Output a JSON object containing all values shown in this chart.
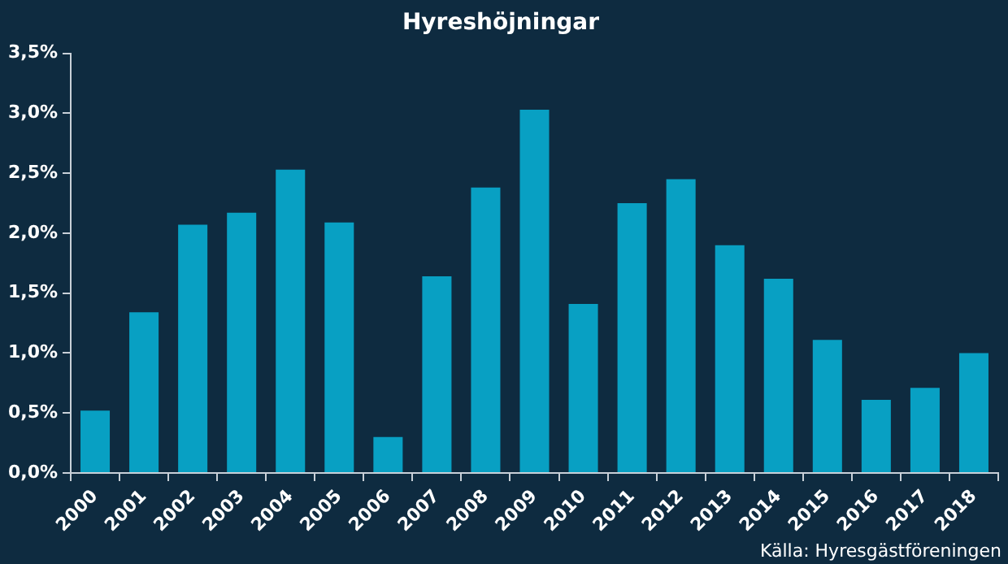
{
  "chart_data": {
    "type": "bar",
    "title": "Hyreshöjningar",
    "categories": [
      "2000",
      "2001",
      "2002",
      "2003",
      "2004",
      "2005",
      "2006",
      "2007",
      "2008",
      "2009",
      "2010",
      "2011",
      "2012",
      "2013",
      "2014",
      "2015",
      "2016",
      "2017",
      "2018"
    ],
    "values": [
      0.52,
      1.34,
      2.07,
      2.17,
      2.53,
      2.09,
      0.3,
      1.64,
      2.38,
      3.03,
      1.41,
      2.25,
      2.45,
      1.9,
      1.62,
      1.11,
      0.61,
      0.71,
      1.0
    ],
    "color": "#08a0c3",
    "ylim": [
      0,
      3.5
    ],
    "yticks": [
      {
        "value": 0,
        "label": "0,0%"
      },
      {
        "value": 0.5,
        "label": "0,5%"
      },
      {
        "value": 1,
        "label": "1,0%"
      },
      {
        "value": 1.5,
        "label": "1,5%"
      },
      {
        "value": 2,
        "label": "2,0%"
      },
      {
        "value": 2.5,
        "label": "2,5%"
      },
      {
        "value": 3,
        "label": "3,0%"
      },
      {
        "value": 3.5,
        "label": "3,5%"
      }
    ],
    "grid": false,
    "legend": false,
    "annotations": [
      "Källa: Hyresgästföreningen"
    ]
  }
}
